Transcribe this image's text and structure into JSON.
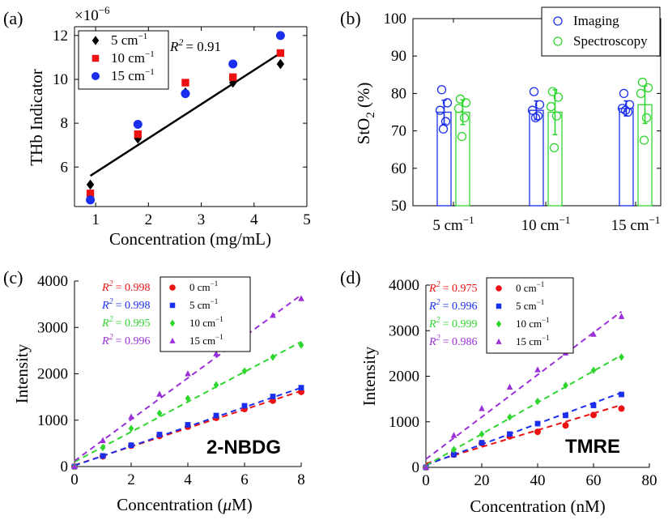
{
  "chart_data": [
    {
      "id": "a",
      "type": "scatter",
      "panel_label": "(a)",
      "xlabel": "Concentration (mg/mL)",
      "ylabel": "THb Indicator",
      "y_multiplier": "×10",
      "y_exponent": "−6",
      "xlim": [
        0.6,
        5
      ],
      "ylim": [
        4.2,
        12.4
      ],
      "xticks": [
        1,
        2,
        3,
        4,
        5
      ],
      "yticks": [
        6,
        8,
        10,
        12
      ],
      "series": [
        {
          "name": "5 cm",
          "unit_sup": "−1",
          "marker": "diamond",
          "color": "#000000",
          "x": [
            0.9,
            1.8,
            2.7,
            3.6,
            4.5
          ],
          "y": [
            5.2,
            7.3,
            9.4,
            9.85,
            10.7
          ]
        },
        {
          "name": "10 cm",
          "unit_sup": "−1",
          "marker": "square",
          "color": "#ee1111",
          "x": [
            0.9,
            1.8,
            2.7,
            3.6,
            4.5
          ],
          "y": [
            4.8,
            7.5,
            9.85,
            10.1,
            11.2
          ]
        },
        {
          "name": "15 cm",
          "unit_sup": "−1",
          "marker": "circle",
          "color": "#1a2eee",
          "x": [
            0.9,
            1.8,
            2.7,
            3.6,
            4.5
          ],
          "y": [
            4.5,
            7.95,
            9.35,
            10.7,
            12.0
          ]
        }
      ],
      "fit": {
        "x": [
          0.9,
          4.5
        ],
        "y": [
          5.6,
          11.2
        ],
        "color": "#000000"
      },
      "annotation": {
        "r2_label": "R",
        "r2_sup": "2",
        "r2_value": "= 0.91"
      }
    },
    {
      "id": "b",
      "type": "bar",
      "panel_label": "(b)",
      "ylabel": "StO",
      "ylabel_sub": "2",
      "ylabel_unit": "(%)",
      "ylim": [
        50,
        100
      ],
      "yticks": [
        50,
        60,
        70,
        80,
        90,
        100
      ],
      "categories": [
        {
          "name": "5 cm",
          "sup": "−1"
        },
        {
          "name": "10 cm",
          "sup": "−1"
        },
        {
          "name": "15 cm",
          "sup": "−1"
        }
      ],
      "series": [
        {
          "name": "Imaging",
          "color": "#1a2eee",
          "values": [
            75.0,
            75.5,
            76.0
          ],
          "errors": [
            3.2,
            2.5,
            2.0
          ],
          "points": [
            [
              81.0,
              77.5,
              75.5,
              72.5,
              70.5
            ],
            [
              80.5,
              77.0,
              75.5,
              74.0,
              73.5
            ],
            [
              80.0,
              77.0,
              76.0,
              75.0,
              75.5
            ]
          ]
        },
        {
          "name": "Spectroscopy",
          "color": "#2fd62f",
          "values": [
            75.0,
            75.0,
            77.0
          ],
          "errors": [
            3.3,
            6.0,
            5.0
          ],
          "points": [
            [
              78.5,
              77.5,
              76.0,
              73.5,
              68.5
            ],
            [
              80.5,
              79.0,
              76.5,
              74.0,
              65.5
            ],
            [
              83.0,
              81.5,
              80.0,
              73.5,
              67.5
            ]
          ]
        }
      ]
    },
    {
      "id": "c",
      "type": "scatter",
      "panel_label": "(c)",
      "xlabel": "Concentration (",
      "xlabel_mu": "μ",
      "xlabel_end": "M)",
      "ylabel": "Intensity",
      "xlim": [
        0,
        8
      ],
      "ylim": [
        0,
        4000
      ],
      "xticks": [
        0,
        2,
        4,
        6,
        8
      ],
      "yticks": [
        0,
        1000,
        2000,
        3000,
        4000
      ],
      "big_label": "2-NBDG",
      "series": [
        {
          "name": "0 cm",
          "unit_sup": "−1",
          "marker": "circle",
          "color": "#ee1111",
          "r2": "= 0.998",
          "x": [
            0,
            1,
            2,
            3,
            4,
            5,
            6,
            7,
            8
          ],
          "y": [
            0,
            220,
            450,
            660,
            860,
            1050,
            1240,
            1420,
            1610
          ],
          "fit": [
            [
              0,
              30
            ],
            [
              8,
              1630
            ]
          ]
        },
        {
          "name": "5 cm",
          "unit_sup": "−1",
          "marker": "square",
          "color": "#1a2eee",
          "r2": "= 0.998",
          "x": [
            0,
            1,
            2,
            3,
            4,
            5,
            6,
            7,
            8
          ],
          "y": [
            0,
            230,
            460,
            690,
            900,
            1100,
            1310,
            1510,
            1700
          ],
          "fit": [
            [
              0,
              20
            ],
            [
              8,
              1700
            ]
          ]
        },
        {
          "name": "10 cm",
          "unit_sup": "−1",
          "marker": "diamond",
          "color": "#2fd62f",
          "r2": "= 0.995",
          "x": [
            0,
            1,
            2,
            3,
            4,
            5,
            6,
            7,
            8
          ],
          "y": [
            0,
            410,
            820,
            1150,
            1470,
            1760,
            2060,
            2360,
            2620
          ],
          "fit": [
            [
              0,
              100
            ],
            [
              8,
              2690
            ]
          ]
        },
        {
          "name": "15 cm",
          "unit_sup": "−1",
          "marker": "triangle",
          "color": "#9b30d9",
          "r2": "= 0.996",
          "x": [
            0,
            1,
            2,
            3,
            4,
            5,
            6,
            7,
            8
          ],
          "y": [
            0,
            560,
            1070,
            1560,
            2000,
            2430,
            2850,
            3260,
            3620
          ],
          "fit": [
            [
              0,
              120
            ],
            [
              8,
              3700
            ]
          ]
        }
      ],
      "r2_label": "R",
      "r2_sup": "2"
    },
    {
      "id": "d",
      "type": "scatter",
      "panel_label": "(d)",
      "xlabel": "Concentration (nM)",
      "ylabel": "Intensity",
      "xlim": [
        0,
        80
      ],
      "ylim": [
        0,
        4000
      ],
      "xticks": [
        0,
        20,
        40,
        60,
        80
      ],
      "yticks": [
        0,
        1000,
        2000,
        3000,
        4000
      ],
      "big_label": "TMRE",
      "series": [
        {
          "name": "0 cm",
          "unit_sup": "−1",
          "marker": "circle",
          "color": "#ee1111",
          "r2": "= 0.975",
          "x": [
            0,
            10,
            20,
            30,
            40,
            50,
            60,
            70
          ],
          "y": [
            0,
            280,
            530,
            680,
            780,
            920,
            1150,
            1290
          ],
          "fit": [
            [
              0,
              80
            ],
            [
              70,
              1370
            ]
          ]
        },
        {
          "name": "5 cm",
          "unit_sup": "−1",
          "marker": "square",
          "color": "#1a2eee",
          "r2": "= 0.996",
          "x": [
            0,
            10,
            20,
            30,
            40,
            50,
            60,
            70
          ],
          "y": [
            0,
            280,
            540,
            730,
            960,
            1140,
            1360,
            1600
          ],
          "fit": [
            [
              0,
              50
            ],
            [
              70,
              1640
            ]
          ]
        },
        {
          "name": "10 cm",
          "unit_sup": "−1",
          "marker": "diamond",
          "color": "#2fd62f",
          "r2": "= 0.999",
          "x": [
            0,
            10,
            20,
            30,
            40,
            50,
            60,
            70
          ],
          "y": [
            0,
            390,
            730,
            1100,
            1450,
            1800,
            2130,
            2420
          ],
          "fit": [
            [
              0,
              40
            ],
            [
              70,
              2460
            ]
          ]
        },
        {
          "name": "15 cm",
          "unit_sup": "−1",
          "marker": "triangle",
          "color": "#9b30d9",
          "r2": "= 0.986",
          "x": [
            0,
            10,
            20,
            30,
            40,
            50,
            60,
            70
          ],
          "y": [
            0,
            700,
            1290,
            1760,
            2140,
            2510,
            2920,
            3310
          ],
          "fit": [
            [
              0,
              180
            ],
            [
              70,
              3420
            ]
          ]
        }
      ],
      "r2_label": "R",
      "r2_sup": "2"
    }
  ]
}
